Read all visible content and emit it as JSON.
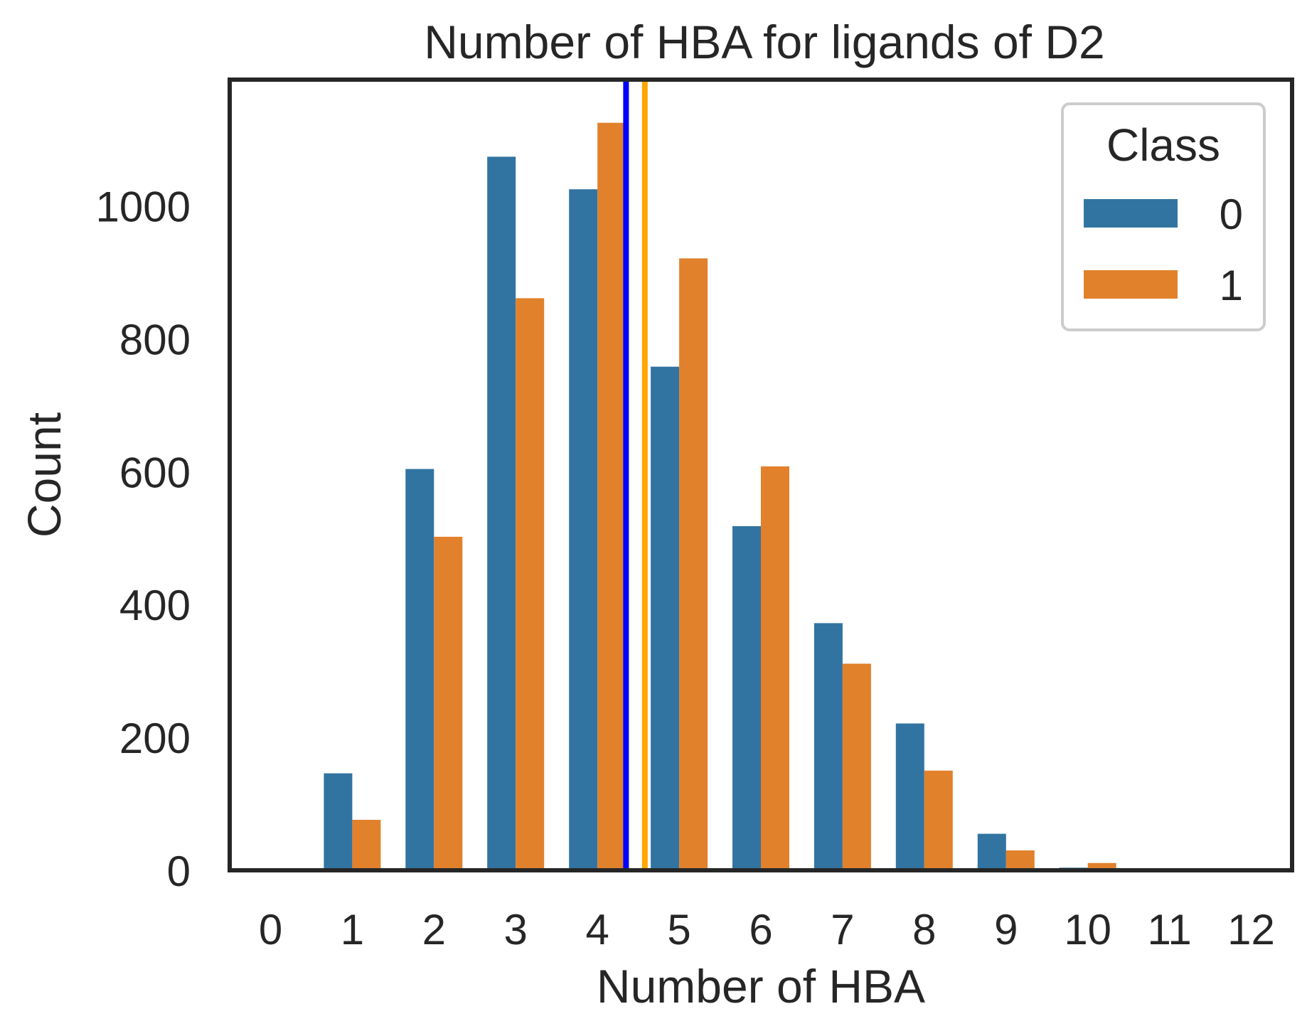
{
  "chart_data": {
    "type": "bar",
    "title": "Number of HBA for ligands of D2",
    "xlabel": "Number of HBA",
    "ylabel": "Count",
    "categories": [
      "0",
      "1",
      "2",
      "3",
      "4",
      "5",
      "6",
      "7",
      "8",
      "9",
      "10",
      "11",
      "12"
    ],
    "series": [
      {
        "name": "0",
        "color": "#3274a1",
        "values": [
          0,
          146,
          604,
          1074,
          1025,
          758,
          518,
          372,
          221,
          55,
          4,
          0,
          0
        ]
      },
      {
        "name": "1",
        "color": "#e1812c",
        "values": [
          0,
          76,
          502,
          861,
          1125,
          921,
          608,
          311,
          150,
          30,
          11,
          0,
          0
        ]
      }
    ],
    "ylim": [
      0,
      1190
    ],
    "yticks": [
      0,
      200,
      400,
      600,
      800,
      1000
    ],
    "legend": {
      "title": "Class",
      "placement": "top-right"
    },
    "reference_lines": [
      {
        "x": 4.35,
        "color": "#0000ff"
      },
      {
        "x": 4.58,
        "color": "#ffa500"
      }
    ],
    "grid": false
  }
}
